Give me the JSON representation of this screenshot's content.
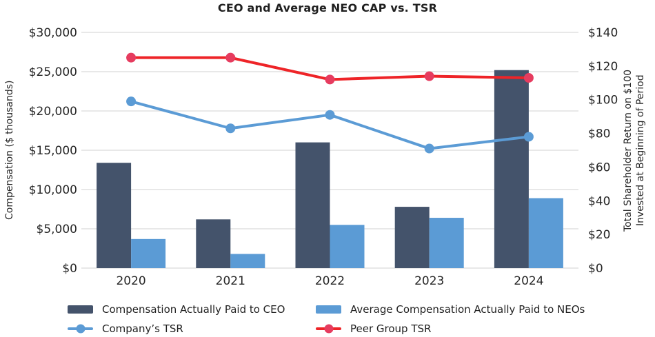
{
  "title": "CEO and Average NEO CAP vs. TSR",
  "chart_data": {
    "type": "combo-bar-line",
    "categories": [
      "2020",
      "2021",
      "2022",
      "2023",
      "2024"
    ],
    "bar_series": [
      {
        "name": "Compensation Actually Paid to CEO",
        "axis": "left",
        "color": "#44536B",
        "values": [
          13400,
          6200,
          16000,
          7800,
          25200
        ]
      },
      {
        "name": "Average Compensation Actually Paid to NEOs",
        "axis": "left",
        "color": "#5B9BD5",
        "values": [
          3700,
          1800,
          5500,
          6400,
          8900
        ]
      }
    ],
    "line_series": [
      {
        "name": "Company’s TSR",
        "axis": "right",
        "color": "#5B9BD5",
        "dot_color": "#5B9BD5",
        "values": [
          99,
          83,
          91,
          71,
          78
        ]
      },
      {
        "name": "Peer Group TSR",
        "axis": "right",
        "color": "#EE2428",
        "dot_color": "#E63C5F",
        "values": [
          125,
          125,
          112,
          114,
          113
        ]
      }
    ],
    "y_left": {
      "label": "Compensation ($ thousands)",
      "min": 0,
      "max": 30000,
      "step": 5000,
      "tick_prefix": "$"
    },
    "y_right": {
      "label": "Total Shareholder Return on $100\nInvested at Beginning of Period",
      "min": 0,
      "max": 140,
      "step": 20,
      "tick_prefix": "$"
    },
    "grid": true,
    "gridline_color": "#D9D9D9",
    "tick_color": "#262626",
    "legend_position": "bottom"
  }
}
